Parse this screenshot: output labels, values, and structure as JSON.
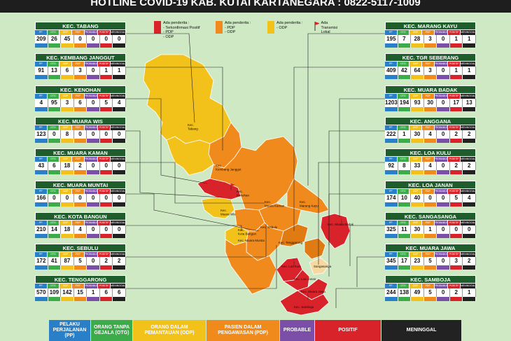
{
  "banner": "HOTLINE COVID-19 KAB. KUTAI KARTANEGARA : 0822-5117-1009",
  "col_headers": [
    "PP",
    "OTG",
    "ODP",
    "PDP",
    "PROBABLE",
    "POSITIF",
    "MENINGGAL"
  ],
  "legend": {
    "positive": "Ada penderita :\n- Terkonfirmasi Positif\n- PDP\n- ODP",
    "pdp": "Ada penderita :\n- PDP\n- ODP",
    "odp": "Ada penderita :\n- ODP",
    "local": "Ada Transmisi\nLokal"
  },
  "colors": {
    "pp": "#2a7fc9",
    "otg": "#3cab4a",
    "odp": "#f2c21a",
    "pdp": "#f08a1c",
    "probable": "#7b4fa8",
    "positif": "#d8232a",
    "meninggal": "#222222",
    "header": "#1f5e2c",
    "background": "#cfe9c4"
  },
  "left_panels": [
    {
      "name": "KEC. TABANG",
      "values": [
        "209",
        "26",
        "45",
        "0",
        "0",
        "0",
        "0"
      ]
    },
    {
      "name": "KEC. KEMBANG JANGGUT",
      "values": [
        "91",
        "13",
        "6",
        "3",
        "0",
        "1",
        "1"
      ]
    },
    {
      "name": "KEC. KENOHAN",
      "values": [
        "4",
        "95",
        "3",
        "6",
        "0",
        "5",
        "4"
      ]
    },
    {
      "name": "KEC. MUARA WIS",
      "values": [
        "123",
        "0",
        "8",
        "0",
        "0",
        "0",
        "0"
      ]
    },
    {
      "name": "KEC. MUARA KAMAN",
      "values": [
        "43",
        "6",
        "18",
        "2",
        "0",
        "0",
        "0"
      ]
    },
    {
      "name": "KEC. MUARA MUNTAI",
      "values": [
        "166",
        "0",
        "0",
        "0",
        "0",
        "0",
        "0"
      ]
    },
    {
      "name": "KEC. KOTA BANGUN",
      "values": [
        "210",
        "14",
        "18",
        "4",
        "0",
        "0",
        "0"
      ]
    },
    {
      "name": "KEC. SEBULU",
      "values": [
        "172",
        "41",
        "87",
        "5",
        "0",
        "2",
        "2"
      ]
    },
    {
      "name": "KEC. TENGGARONG",
      "values": [
        "570",
        "109",
        "142",
        "15",
        "1",
        "6",
        "6"
      ]
    }
  ],
  "right_panels": [
    {
      "name": "KEC. MARANG KAYU",
      "values": [
        "195",
        "7",
        "28",
        "3",
        "0",
        "1",
        "1"
      ]
    },
    {
      "name": "KEC. TGR SEBERANG",
      "values": [
        "409",
        "42",
        "64",
        "3",
        "0",
        "1",
        "1"
      ]
    },
    {
      "name": "KEC. MUARA BADAK",
      "values": [
        "1203",
        "194",
        "93",
        "30",
        "0",
        "17",
        "13"
      ]
    },
    {
      "name": "KEC. ANGGANA",
      "values": [
        "222",
        "1",
        "30",
        "4",
        "0",
        "2",
        "2"
      ]
    },
    {
      "name": "KEC. LOA KULU",
      "values": [
        "92",
        "8",
        "33",
        "4",
        "0",
        "2",
        "2"
      ]
    },
    {
      "name": "KEC. LOA JANAN",
      "values": [
        "174",
        "10",
        "40",
        "0",
        "0",
        "5",
        "4"
      ]
    },
    {
      "name": "KEC. SANGASANGA",
      "values": [
        "325",
        "11",
        "30",
        "1",
        "0",
        "0",
        "0"
      ]
    },
    {
      "name": "KEC. MUARA JAWA",
      "values": [
        "345",
        "17",
        "23",
        "5",
        "0",
        "3",
        "2"
      ]
    },
    {
      "name": "KEC. SAMBOJA",
      "values": [
        "244",
        "138",
        "49",
        "5",
        "0",
        "2",
        "1"
      ]
    }
  ],
  "map_labels": {
    "tabang": "Kec.\nTabang",
    "kembang": "Kec.\nKembang Janggut",
    "kenohan": "Kec.\nKenohan",
    "wis": "Kec.\nMuara Wis",
    "kaman": "Kec.\nMuara Kaman",
    "marang": "Kec.\nMarang Kayu",
    "kota_bangun": "Kec.\nKota Bangun",
    "sebulu": "Kec. Sebulu",
    "muntai": "Kec. Muara Muntai",
    "tenggarong": "Kec. Tenggarong",
    "badak": "Kec. Muara Badak",
    "loa_kulu": "Kec. Loa Kulu",
    "loa_janan": "Kec. Loa Janan",
    "sangasanga": "Sangasanga",
    "muara_jawa": "Kec. Muara Jawa",
    "samboja": "Kec. Samboja"
  },
  "bottom_legend": [
    {
      "label": "PELAKU PERJALANAN (PP)",
      "color": "#2a7fc9"
    },
    {
      "label": "ORANG TANPA GEJALA (OTG)",
      "color": "#3cab4a"
    },
    {
      "label": "ORANG DALAM PEMANTAUAN (ODP)",
      "color": "#f2c21a"
    },
    {
      "label": "PASIEN DALAM PENGAWASAN (PDP)",
      "color": "#f08a1c"
    },
    {
      "label": "PROBABLE",
      "color": "#7b4fa8"
    },
    {
      "label": "POSITIF",
      "color": "#d8232a"
    },
    {
      "label": "MENINGGAL",
      "color": "#222222"
    }
  ]
}
